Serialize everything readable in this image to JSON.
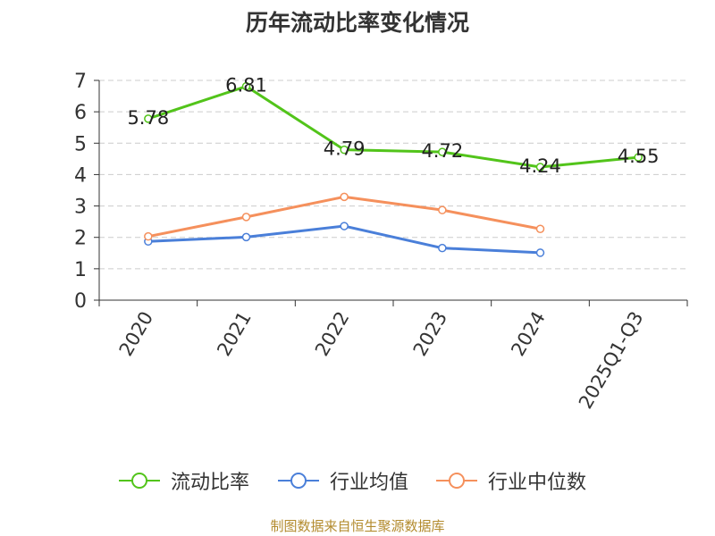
{
  "chart_data": {
    "type": "line",
    "title": "历年流动比率变化情况",
    "categories": [
      "2020",
      "2021",
      "2022",
      "2023",
      "2024",
      "2025Q1-Q3"
    ],
    "ylim": [
      0,
      7
    ],
    "yticks": [
      "0",
      "1",
      "2",
      "3",
      "4",
      "5",
      "6",
      "7"
    ],
    "grid": true,
    "legend_position": "bottom",
    "series": [
      {
        "name": "流动比率",
        "color": "#52c41a",
        "values": [
          5.78,
          6.81,
          4.79,
          4.72,
          4.24,
          4.55
        ],
        "labels": [
          "5.78",
          "6.81",
          "4.79",
          "4.72",
          "4.24",
          "4.55"
        ]
      },
      {
        "name": "行业均值",
        "color": "#4a7fd9",
        "values": [
          1.87,
          2.01,
          2.36,
          1.66,
          1.51,
          null
        ]
      },
      {
        "name": "行业中位数",
        "color": "#f5905c",
        "values": [
          2.03,
          2.65,
          3.29,
          2.87,
          2.27,
          null
        ]
      }
    ]
  },
  "source": "制图数据来自恒生聚源数据库"
}
